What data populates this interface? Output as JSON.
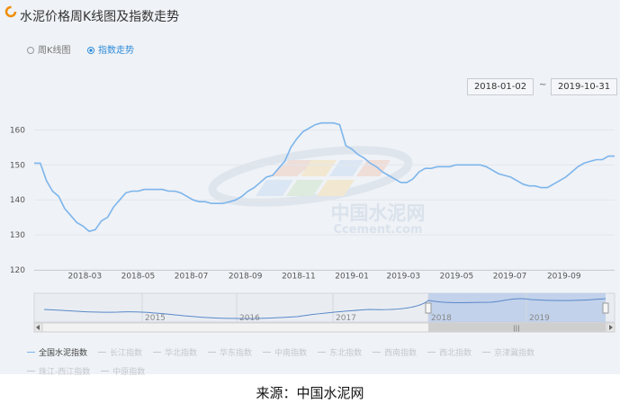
{
  "title": "水泥价格周K线图及指数走势",
  "options": [
    {
      "label": "周K线图",
      "selected": false
    },
    {
      "label": "指数走势",
      "selected": true
    }
  ],
  "date_range": {
    "start": "2018-01-02",
    "separator": "~",
    "end": "2019-10-31"
  },
  "watermark": {
    "text_cn": "中国水泥网",
    "text_en": "Ccement.com"
  },
  "navigator": {
    "labels": [
      "2015",
      "2016",
      "2017",
      "2018",
      "2019"
    ],
    "handle_glyph": "|||"
  },
  "legend": [
    {
      "label": "全国水泥指数",
      "active": true
    },
    {
      "label": "长江指数",
      "active": false
    },
    {
      "label": "华北指数",
      "active": false
    },
    {
      "label": "华东指数",
      "active": false
    },
    {
      "label": "中南指数",
      "active": false
    },
    {
      "label": "东北指数",
      "active": false
    },
    {
      "label": "西南指数",
      "active": false
    },
    {
      "label": "西北指数",
      "active": false
    },
    {
      "label": "京津冀指数",
      "active": false
    },
    {
      "label": "珠江-西江指数",
      "active": false
    },
    {
      "label": "中原指数",
      "active": false
    }
  ],
  "source": "来源：中国水泥网",
  "colors": {
    "line": "#7cb5ec",
    "panel": "#eff2f6",
    "grid": "#e3e7ec",
    "accent": "#2f8bd8",
    "logo": "#f08c00"
  },
  "chart_data": {
    "type": "line",
    "title": "",
    "xlabel": "",
    "ylabel": "",
    "ylim": [
      120,
      165
    ],
    "yticks": [
      120,
      130,
      140,
      150,
      160
    ],
    "xticks": [
      "2018-03",
      "2018-05",
      "2018-07",
      "2018-09",
      "2018-11",
      "2019-01",
      "2019-03",
      "2019-05",
      "2019-07",
      "2019-09"
    ],
    "grid": true,
    "legend_position": "bottom",
    "series": [
      {
        "name": "全国水泥指数",
        "points": [
          [
            "2018-01-02",
            150.5
          ],
          [
            "2018-01-09",
            150.5
          ],
          [
            "2018-01-16",
            145.5
          ],
          [
            "2018-01-23",
            142.5
          ],
          [
            "2018-01-30",
            141.0
          ],
          [
            "2018-02-06",
            137.5
          ],
          [
            "2018-02-13",
            135.5
          ],
          [
            "2018-02-20",
            133.5
          ],
          [
            "2018-02-27",
            132.5
          ],
          [
            "2018-03-06",
            131.0
          ],
          [
            "2018-03-13",
            131.5
          ],
          [
            "2018-03-20",
            134.0
          ],
          [
            "2018-03-27",
            135.0
          ],
          [
            "2018-04-03",
            138.0
          ],
          [
            "2018-04-10",
            140.0
          ],
          [
            "2018-04-17",
            142.0
          ],
          [
            "2018-04-24",
            142.5
          ],
          [
            "2018-05-01",
            142.5
          ],
          [
            "2018-05-08",
            143.0
          ],
          [
            "2018-05-15",
            143.0
          ],
          [
            "2018-05-22",
            143.0
          ],
          [
            "2018-05-29",
            143.0
          ],
          [
            "2018-06-05",
            142.5
          ],
          [
            "2018-06-12",
            142.5
          ],
          [
            "2018-06-19",
            142.0
          ],
          [
            "2018-06-26",
            141.0
          ],
          [
            "2018-07-03",
            140.0
          ],
          [
            "2018-07-10",
            139.5
          ],
          [
            "2018-07-17",
            139.5
          ],
          [
            "2018-07-24",
            139.0
          ],
          [
            "2018-07-31",
            139.0
          ],
          [
            "2018-08-07",
            139.0
          ],
          [
            "2018-08-14",
            139.5
          ],
          [
            "2018-08-21",
            140.0
          ],
          [
            "2018-08-28",
            141.0
          ],
          [
            "2018-09-04",
            142.5
          ],
          [
            "2018-09-11",
            143.5
          ],
          [
            "2018-09-18",
            145.0
          ],
          [
            "2018-09-25",
            146.5
          ],
          [
            "2018-10-02",
            147.0
          ],
          [
            "2018-10-09",
            149.0
          ],
          [
            "2018-10-16",
            151.0
          ],
          [
            "2018-10-23",
            155.0
          ],
          [
            "2018-10-30",
            157.5
          ],
          [
            "2018-11-06",
            159.5
          ],
          [
            "2018-11-13",
            160.5
          ],
          [
            "2018-11-20",
            161.5
          ],
          [
            "2018-11-27",
            162.0
          ],
          [
            "2018-12-04",
            162.0
          ],
          [
            "2018-12-11",
            162.0
          ],
          [
            "2018-12-18",
            161.5
          ],
          [
            "2018-12-25",
            155.5
          ],
          [
            "2019-01-01",
            154.5
          ],
          [
            "2019-01-08",
            153.0
          ],
          [
            "2019-01-15",
            152.0
          ],
          [
            "2019-01-22",
            150.5
          ],
          [
            "2019-01-29",
            149.5
          ],
          [
            "2019-02-05",
            148.0
          ],
          [
            "2019-02-12",
            147.0
          ],
          [
            "2019-02-19",
            146.0
          ],
          [
            "2019-02-26",
            145.0
          ],
          [
            "2019-03-05",
            145.0
          ],
          [
            "2019-03-12",
            146.0
          ],
          [
            "2019-03-19",
            148.0
          ],
          [
            "2019-03-26",
            149.0
          ],
          [
            "2019-04-02",
            149.0
          ],
          [
            "2019-04-09",
            149.5
          ],
          [
            "2019-04-16",
            149.5
          ],
          [
            "2019-04-23",
            149.5
          ],
          [
            "2019-04-30",
            150.0
          ],
          [
            "2019-05-07",
            150.0
          ],
          [
            "2019-05-14",
            150.0
          ],
          [
            "2019-05-21",
            150.0
          ],
          [
            "2019-05-28",
            150.0
          ],
          [
            "2019-06-04",
            149.5
          ],
          [
            "2019-06-11",
            148.5
          ],
          [
            "2019-06-18",
            147.5
          ],
          [
            "2019-06-25",
            147.0
          ],
          [
            "2019-07-02",
            146.5
          ],
          [
            "2019-07-09",
            145.5
          ],
          [
            "2019-07-16",
            144.5
          ],
          [
            "2019-07-23",
            144.0
          ],
          [
            "2019-07-30",
            144.0
          ],
          [
            "2019-08-06",
            143.5
          ],
          [
            "2019-08-13",
            143.5
          ],
          [
            "2019-08-20",
            144.5
          ],
          [
            "2019-08-27",
            145.5
          ],
          [
            "2019-09-03",
            146.5
          ],
          [
            "2019-09-10",
            148.0
          ],
          [
            "2019-09-17",
            149.5
          ],
          [
            "2019-09-24",
            150.5
          ],
          [
            "2019-10-01",
            151.0
          ],
          [
            "2019-10-08",
            151.5
          ],
          [
            "2019-10-15",
            151.5
          ],
          [
            "2019-10-22",
            152.5
          ],
          [
            "2019-10-29",
            152.5
          ]
        ]
      }
    ]
  }
}
